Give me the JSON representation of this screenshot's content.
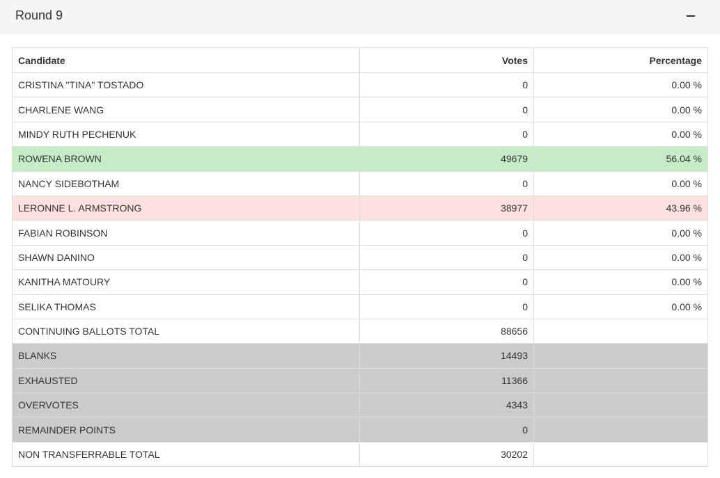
{
  "round": {
    "title": "Round 9",
    "collapse_icon": "minus-icon"
  },
  "table": {
    "headers": {
      "candidate": "Candidate",
      "votes": "Votes",
      "percentage": "Percentage"
    },
    "candidates": [
      {
        "name": "CRISTINA \"TINA\" TOSTADO",
        "votes": "0",
        "percentage": "0.00 %"
      },
      {
        "name": "CHARLENE WANG",
        "votes": "0",
        "percentage": "0.00 %"
      },
      {
        "name": "MINDY RUTH PECHENUK",
        "votes": "0",
        "percentage": "0.00 %"
      },
      {
        "name": "ROWENA BROWN",
        "votes": "49679",
        "percentage": "56.04 %",
        "status": "elected"
      },
      {
        "name": "NANCY SIDEBOTHAM",
        "votes": "0",
        "percentage": "0.00 %"
      },
      {
        "name": "LERONNE L. ARMSTRONG",
        "votes": "38977",
        "percentage": "43.96 %",
        "status": "defeated"
      },
      {
        "name": "FABIAN ROBINSON",
        "votes": "0",
        "percentage": "0.00 %"
      },
      {
        "name": "SHAWN DANINO",
        "votes": "0",
        "percentage": "0.00 %"
      },
      {
        "name": "KANITHA MATOURY",
        "votes": "0",
        "percentage": "0.00 %"
      },
      {
        "name": "SELIKA THOMAS",
        "votes": "0",
        "percentage": "0.00 %"
      }
    ],
    "continuing": {
      "label": "CONTINUING BALLOTS TOTAL",
      "votes": "88656"
    },
    "non_transferable": [
      {
        "label": "BLANKS",
        "votes": "14493"
      },
      {
        "label": "EXHAUSTED",
        "votes": "11366"
      },
      {
        "label": "OVERVOTES",
        "votes": "4343"
      },
      {
        "label": "REMAINDER POINTS",
        "votes": "0"
      }
    ],
    "non_transferable_total": {
      "label": "NON TRANSFERRABLE TOTAL",
      "votes": "30202"
    }
  },
  "colors": {
    "elected_row": "#c6ebc6",
    "defeated_row": "#fde1e1",
    "non_transferable_row": "#cbcbcb",
    "header_bg": "#f5f5f5"
  }
}
